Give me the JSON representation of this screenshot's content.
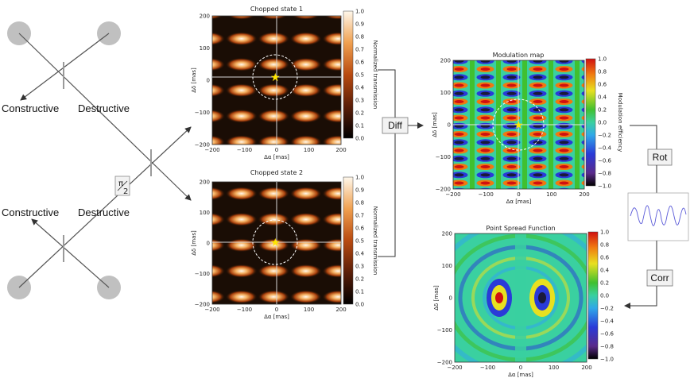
{
  "left_diagram": {
    "top_labels": {
      "constructive": "Constructive",
      "destructive": "Destructive"
    },
    "bottom_labels": {
      "constructive": "Constructive",
      "destructive": "Destructive"
    },
    "phase_shift": {
      "numerator": "π",
      "denominator": "2"
    },
    "telescope_color": "#c0c0c0",
    "beam_color": "#555555"
  },
  "flow_boxes": {
    "diff": "Diff",
    "rot": "Rot",
    "corr": "Corr"
  },
  "panels": {
    "chopped1": {
      "title": "Chopped state 1",
      "xlabel": "Δα [mas]",
      "ylabel": "Δδ [mas]",
      "x_ticks": [
        "−200",
        "−100",
        "0",
        "100",
        "200"
      ],
      "y_ticks": [
        "200",
        "100",
        "0",
        "−100",
        "−200"
      ],
      "colorbar_label": "Normalized transmission",
      "colorbar_ticks": [
        "1.0",
        "0.9",
        "0.8",
        "0.7",
        "0.6",
        "0.5",
        "0.4",
        "0.3",
        "0.2",
        "0.1",
        "0.0"
      ]
    },
    "chopped2": {
      "title": "Chopped state 2",
      "xlabel": "Δα [mas]",
      "ylabel": "Δδ [mas]",
      "x_ticks": [
        "−200",
        "−100",
        "0",
        "100",
        "200"
      ],
      "y_ticks": [
        "200",
        "100",
        "0",
        "−100",
        "−200"
      ],
      "colorbar_label": "Normalized transmission",
      "colorbar_ticks": [
        "1.0",
        "0.9",
        "0.8",
        "0.7",
        "0.6",
        "0.5",
        "0.4",
        "0.3",
        "0.2",
        "0.1",
        "0.0"
      ]
    },
    "modulation": {
      "title": "Modulation map",
      "xlabel": "Δα [mas]",
      "ylabel": "Δδ [mas]",
      "x_ticks": [
        "−200",
        "−100",
        "0",
        "100",
        "200"
      ],
      "y_ticks": [
        "200",
        "100",
        "0",
        "−100",
        "−200"
      ],
      "colorbar_label": "Modulation efficiency",
      "colorbar_ticks": [
        "1.0",
        "0.8",
        "0.6",
        "0.4",
        "0.2",
        "0.0",
        "−0.2",
        "−0.4",
        "−0.6",
        "−0.8",
        "−1.0"
      ]
    },
    "psf": {
      "title": "Point Spread Function",
      "xlabel": "Δα [mas]",
      "ylabel": "Δδ [mas]",
      "x_ticks": [
        "−200",
        "−100",
        "0",
        "100",
        "200"
      ],
      "y_ticks": [
        "200",
        "100",
        "0",
        "−100",
        "−200"
      ],
      "colorbar_ticks": [
        "1.0",
        "0.8",
        "0.6",
        "0.4",
        "0.2",
        "0.0",
        "−0.2",
        "−0.4",
        "−0.6",
        "−0.8",
        "−1.0"
      ]
    }
  },
  "colors": {
    "heat_dark": "#1a0d05",
    "heat_light": "#fff3dc",
    "star": "#ffe600",
    "axis_line": "#d8d8d8",
    "arrow": "#333333"
  }
}
